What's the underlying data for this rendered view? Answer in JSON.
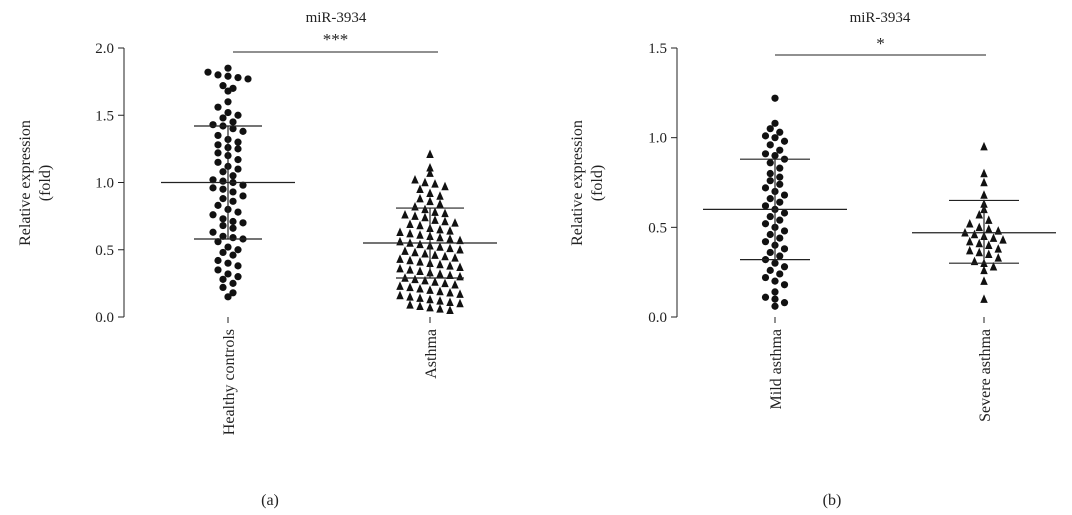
{
  "chart_data": [
    {
      "type": "scatter",
      "panel_label": "(a)",
      "title": "miR-3934",
      "ylabel": "Relative expression",
      "ylabel_sub": "(fold)",
      "ylim": [
        0,
        2.0
      ],
      "yticks": [
        "0.0",
        "0.5",
        "1.0",
        "1.5",
        "2.0"
      ],
      "categories": [
        "Healthy controls",
        "Asthma"
      ],
      "significance": "***",
      "series": [
        {
          "name": "Healthy controls",
          "marker": "circle",
          "mean": 1.0,
          "sd_low": 0.58,
          "sd_high": 1.42,
          "values": [
            1.85,
            1.82,
            1.8,
            1.79,
            1.78,
            1.77,
            1.72,
            1.7,
            1.68,
            1.6,
            1.56,
            1.52,
            1.5,
            1.48,
            1.45,
            1.43,
            1.42,
            1.4,
            1.38,
            1.35,
            1.32,
            1.3,
            1.28,
            1.26,
            1.25,
            1.22,
            1.2,
            1.17,
            1.15,
            1.12,
            1.1,
            1.08,
            1.05,
            1.02,
            1.01,
            1.0,
            0.98,
            0.96,
            0.95,
            0.93,
            0.9,
            0.88,
            0.86,
            0.83,
            0.8,
            0.78,
            0.76,
            0.73,
            0.71,
            0.7,
            0.68,
            0.66,
            0.63,
            0.6,
            0.59,
            0.58,
            0.56,
            0.52,
            0.5,
            0.48,
            0.46,
            0.42,
            0.4,
            0.38,
            0.35,
            0.32,
            0.3,
            0.28,
            0.25,
            0.22,
            0.18,
            0.15
          ]
        },
        {
          "name": "Asthma",
          "marker": "triangle",
          "mean": 0.55,
          "sd_low": 0.29,
          "sd_high": 0.81,
          "values": [
            1.21,
            1.11,
            1.07,
            1.02,
            1.0,
            0.99,
            0.97,
            0.95,
            0.92,
            0.9,
            0.88,
            0.86,
            0.84,
            0.82,
            0.8,
            0.78,
            0.77,
            0.76,
            0.75,
            0.74,
            0.72,
            0.71,
            0.7,
            0.69,
            0.68,
            0.66,
            0.65,
            0.64,
            0.63,
            0.62,
            0.61,
            0.6,
            0.59,
            0.58,
            0.57,
            0.56,
            0.55,
            0.54,
            0.53,
            0.52,
            0.51,
            0.5,
            0.49,
            0.48,
            0.47,
            0.46,
            0.45,
            0.44,
            0.43,
            0.42,
            0.41,
            0.4,
            0.39,
            0.38,
            0.37,
            0.36,
            0.35,
            0.34,
            0.33,
            0.32,
            0.31,
            0.3,
            0.29,
            0.28,
            0.27,
            0.26,
            0.25,
            0.24,
            0.23,
            0.22,
            0.21,
            0.2,
            0.19,
            0.18,
            0.17,
            0.16,
            0.15,
            0.14,
            0.13,
            0.12,
            0.11,
            0.1,
            0.09,
            0.08,
            0.07,
            0.06,
            0.05
          ]
        }
      ]
    },
    {
      "type": "scatter",
      "panel_label": "(b)",
      "title": "miR-3934",
      "ylabel": "Relative expression",
      "ylabel_sub": "(fold)",
      "ylim": [
        0,
        1.5
      ],
      "yticks": [
        "0.0",
        "0.5",
        "1.0",
        "1.5"
      ],
      "categories": [
        "Mild asthma",
        "Severe asthma"
      ],
      "significance": "*",
      "series": [
        {
          "name": "Mild asthma",
          "marker": "circle",
          "mean": 0.6,
          "sd_low": 0.32,
          "sd_high": 0.88,
          "values": [
            1.22,
            1.08,
            1.05,
            1.03,
            1.01,
            1.0,
            0.98,
            0.96,
            0.93,
            0.91,
            0.9,
            0.88,
            0.86,
            0.83,
            0.8,
            0.78,
            0.76,
            0.74,
            0.72,
            0.7,
            0.68,
            0.66,
            0.64,
            0.62,
            0.6,
            0.58,
            0.56,
            0.54,
            0.52,
            0.5,
            0.48,
            0.46,
            0.44,
            0.42,
            0.4,
            0.38,
            0.36,
            0.34,
            0.32,
            0.3,
            0.28,
            0.26,
            0.24,
            0.22,
            0.2,
            0.18,
            0.14,
            0.11,
            0.1,
            0.08,
            0.06
          ]
        },
        {
          "name": "Severe asthma",
          "marker": "triangle",
          "mean": 0.47,
          "sd_low": 0.3,
          "sd_high": 0.65,
          "values": [
            0.95,
            0.8,
            0.75,
            0.68,
            0.63,
            0.6,
            0.57,
            0.54,
            0.52,
            0.5,
            0.49,
            0.48,
            0.47,
            0.46,
            0.45,
            0.44,
            0.43,
            0.42,
            0.41,
            0.4,
            0.38,
            0.37,
            0.36,
            0.35,
            0.33,
            0.31,
            0.3,
            0.28,
            0.26,
            0.2,
            0.1
          ]
        }
      ]
    }
  ]
}
